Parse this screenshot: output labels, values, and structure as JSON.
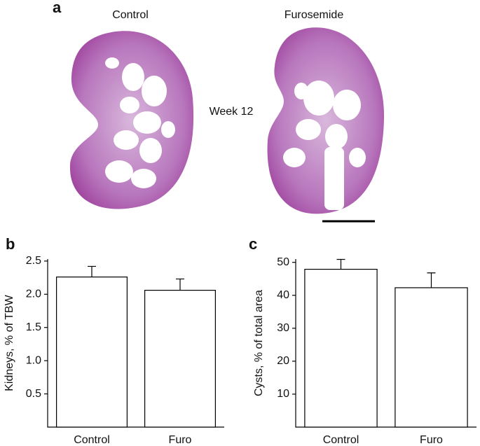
{
  "panel_a": {
    "label": "a",
    "left_title": "Control",
    "right_title": "Furosemide",
    "annotation": "Week 12"
  },
  "chart_data": [
    {
      "type": "bar",
      "panel": "b",
      "ylabel": "Kidneys, % of TBW",
      "categories": [
        "Control",
        "Furo"
      ],
      "values": [
        2.26,
        2.06
      ],
      "errors": [
        0.16,
        0.17
      ],
      "color": "#ffffff",
      "ylim": [
        0,
        2.53
      ],
      "yticks": [
        0.5,
        {
          "value": 1,
          "label": "1.0"
        },
        1.5,
        {
          "value": 2,
          "label": "2.0"
        },
        2.5
      ]
    },
    {
      "type": "bar",
      "panel": "c",
      "ylabel": "Cysts, % of total area",
      "categories": [
        "Control",
        "Furo"
      ],
      "values": [
        47.9,
        42.3
      ],
      "errors": [
        3,
        4.5
      ],
      "color": "#ffffff",
      "ylim": [
        0,
        51
      ],
      "yticks": [
        10,
        20,
        30,
        40,
        50
      ]
    }
  ]
}
